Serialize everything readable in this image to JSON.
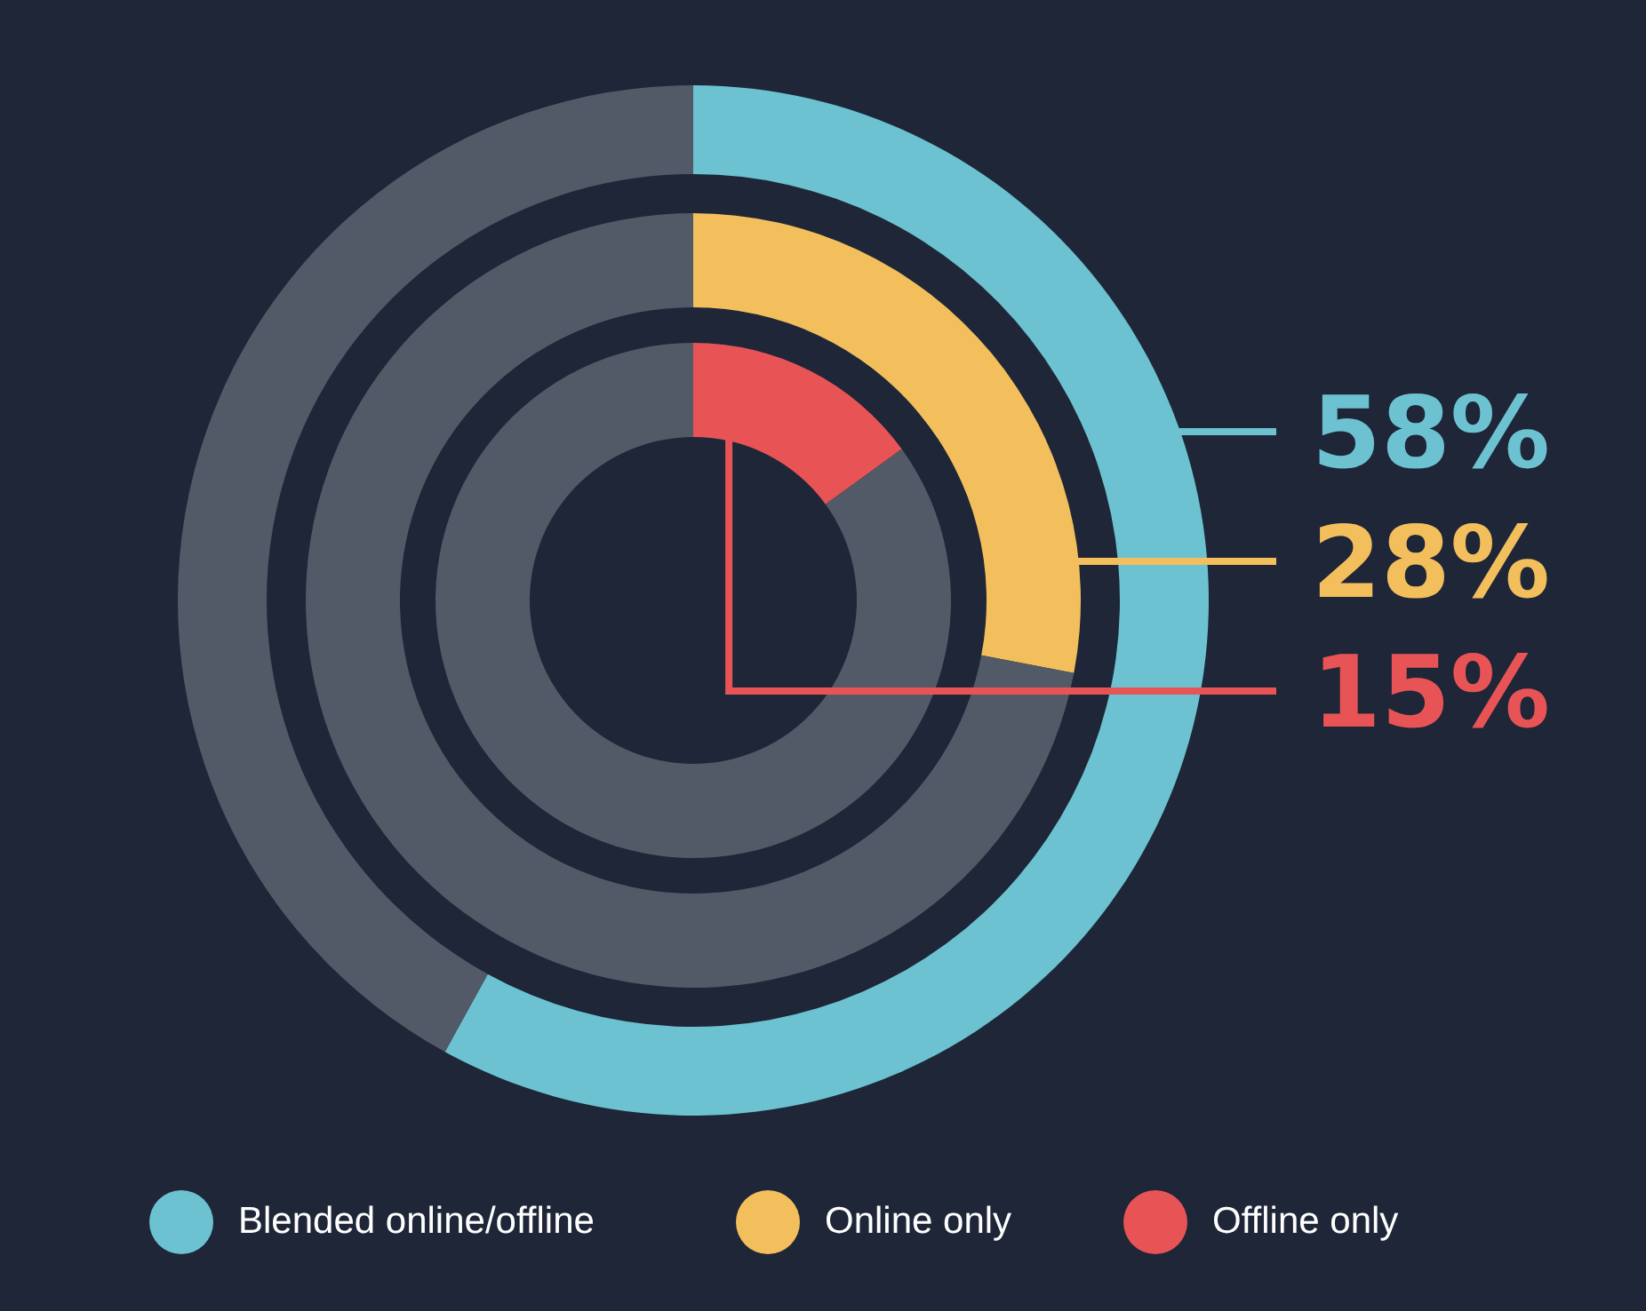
{
  "chart_data": [
    {
      "type": "donut",
      "categories": [
        "Blended online/offline",
        null
      ],
      "values": [
        58,
        42
      ],
      "colors": [
        "#6cc2d0",
        "#525a68"
      ],
      "value_labels": [
        "58%",
        null
      ],
      "legend": "bottom"
    },
    {
      "type": "donut",
      "categories": [
        "Online only",
        null
      ],
      "values": [
        28,
        72
      ],
      "colors": [
        "#f3bf5c",
        "#525a68"
      ],
      "value_labels": [
        "28%",
        null
      ],
      "legend": "bottom"
    },
    {
      "type": "donut",
      "categories": [
        "Offline only",
        null
      ],
      "values": [
        15,
        85
      ],
      "colors": [
        "#e85456",
        "#525a68"
      ],
      "value_labels": [
        "15%",
        null
      ],
      "legend": "bottom"
    }
  ]
}
